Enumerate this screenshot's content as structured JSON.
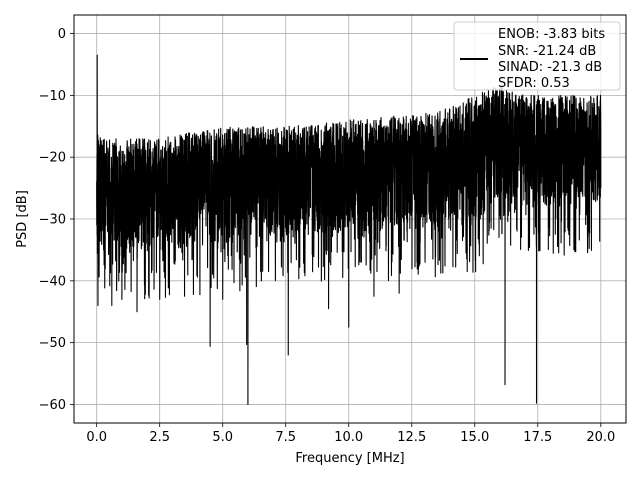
{
  "chart_data": {
    "type": "line",
    "title": "",
    "xlabel": "Frequency [MHz]",
    "ylabel": "PSD [dB]",
    "xlim": [
      -0.9,
      21.0
    ],
    "ylim": [
      -63,
      3
    ],
    "xticks": [
      0.0,
      2.5,
      5.0,
      7.5,
      10.0,
      12.5,
      15.0,
      17.5,
      20.0
    ],
    "xtick_labels": [
      "0.0",
      "2.5",
      "5.0",
      "7.5",
      "10.0",
      "12.5",
      "15.0",
      "17.5",
      "20.0"
    ],
    "yticks": [
      0,
      -10,
      -20,
      -30,
      -40,
      -50,
      -60
    ],
    "ytick_labels": [
      "0",
      "−10",
      "−20",
      "−30",
      "−40",
      "−50",
      "−60"
    ],
    "grid": true,
    "legend_position": "top-right",
    "legend_lines": [
      "ENOB: -3.83 bits",
      "SNR: -21.24 dB",
      "SINAD: -21.3 dB",
      "SFDR: 0.53"
    ],
    "series": [
      {
        "color": "#000000",
        "band_profile": {
          "x": [
            0.0,
            0.5,
            2.5,
            5.0,
            7.5,
            10.0,
            12.5,
            14.0,
            15.0,
            16.0,
            17.0,
            18.0,
            19.0,
            20.0
          ],
          "upper": [
            -16,
            -17,
            -17,
            -15,
            -15,
            -14,
            -13,
            -12,
            -10,
            -8,
            -10,
            -10,
            -10,
            -10
          ],
          "center": [
            -24,
            -24,
            -24,
            -23,
            -22,
            -22,
            -21,
            -20,
            -18,
            -16,
            -16,
            -17,
            -17,
            -17
          ],
          "lower": [
            -35,
            -35,
            -35,
            -34,
            -33,
            -32,
            -32,
            -31,
            -31,
            -27,
            -28,
            -28,
            -28,
            -27
          ]
        },
        "points": [
          {
            "x": 0.0,
            "y": -26
          },
          {
            "x": 0.02,
            "y": -3.5
          },
          {
            "x": 0.04,
            "y": -26
          },
          {
            "x": 0.05,
            "y": -44
          },
          {
            "x": 0.6,
            "y": -44
          },
          {
            "x": 1.0,
            "y": -43
          },
          {
            "x": 1.6,
            "y": -45
          },
          {
            "x": 2.5,
            "y": -43
          },
          {
            "x": 4.5,
            "y": -50.6
          },
          {
            "x": 5.0,
            "y": -43
          },
          {
            "x": 5.95,
            "y": -50.3
          },
          {
            "x": 6.0,
            "y": -60
          },
          {
            "x": 7.6,
            "y": -52
          },
          {
            "x": 9.2,
            "y": -44.5
          },
          {
            "x": 10.0,
            "y": -47.5
          },
          {
            "x": 11.0,
            "y": -42.5
          },
          {
            "x": 12.0,
            "y": -42
          },
          {
            "x": 14.7,
            "y": -38.5
          },
          {
            "x": 16.2,
            "y": -56.8
          },
          {
            "x": 17.45,
            "y": -59.8
          },
          {
            "x": 19.0,
            "y": -31
          },
          {
            "x": 20.0,
            "y": -25
          }
        ]
      }
    ]
  }
}
